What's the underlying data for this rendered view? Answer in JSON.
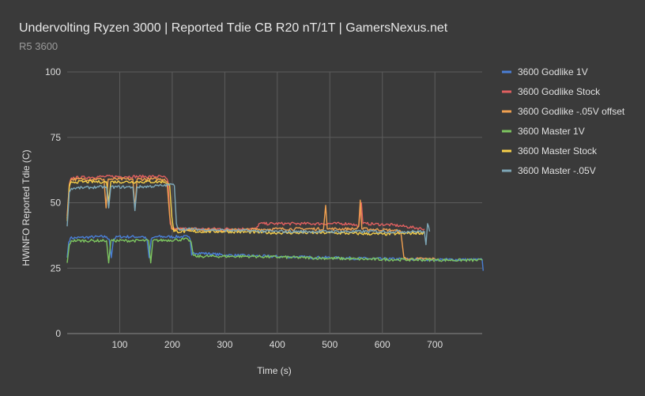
{
  "chart_data": {
    "type": "line",
    "title": "Undervolting Ryzen 3000 | Reported Tdie CB R20 nT/1T | GamersNexus.net",
    "subtitle": "R5 3600",
    "xlabel": "Time (s)",
    "ylabel": "HWiNFO Reported Tdie (C)",
    "xlim": [
      0,
      790
    ],
    "ylim": [
      0,
      100
    ],
    "x_ticks": [
      100,
      200,
      300,
      400,
      500,
      600,
      700
    ],
    "y_ticks": [
      0,
      25,
      50,
      75,
      100
    ],
    "grid": true,
    "legend_position": "right",
    "series": [
      {
        "name": "3600 Godlike 1V",
        "color": "#4a7fd6",
        "points": [
          [
            0,
            29
          ],
          [
            3,
            35
          ],
          [
            6,
            36.5
          ],
          [
            60,
            37
          ],
          [
            75,
            37
          ],
          [
            80,
            36
          ],
          [
            84,
            29
          ],
          [
            88,
            36
          ],
          [
            95,
            37
          ],
          [
            145,
            37
          ],
          [
            152,
            36
          ],
          [
            156,
            29
          ],
          [
            160,
            36
          ],
          [
            168,
            37
          ],
          [
            230,
            37
          ],
          [
            234,
            36
          ],
          [
            237,
            30
          ],
          [
            240,
            31
          ],
          [
            300,
            30
          ],
          [
            380,
            29.5
          ],
          [
            500,
            29
          ],
          [
            600,
            28.5
          ],
          [
            700,
            28.3
          ],
          [
            790,
            28.2
          ],
          [
            792,
            24
          ]
        ]
      },
      {
        "name": "3600 Godlike Stock",
        "color": "#e06060",
        "points": [
          [
            0,
            45
          ],
          [
            4,
            57
          ],
          [
            8,
            59.5
          ],
          [
            70,
            60
          ],
          [
            110,
            60
          ],
          [
            180,
            60
          ],
          [
            188,
            59.5
          ],
          [
            192,
            58
          ],
          [
            196,
            42
          ],
          [
            200,
            40
          ],
          [
            360,
            40
          ],
          [
            365,
            42
          ],
          [
            450,
            42
          ],
          [
            540,
            42
          ],
          [
            555,
            41
          ],
          [
            560,
            50
          ],
          [
            563,
            42
          ],
          [
            570,
            42
          ],
          [
            620,
            41.5
          ],
          [
            680,
            40
          ]
        ]
      },
      {
        "name": "3600 Godlike -.05V offset",
        "color": "#f0a050",
        "points": [
          [
            0,
            44
          ],
          [
            4,
            57
          ],
          [
            8,
            59
          ],
          [
            65,
            59
          ],
          [
            70,
            59
          ],
          [
            74,
            48
          ],
          [
            78,
            59
          ],
          [
            120,
            59
          ],
          [
            125,
            59
          ],
          [
            129,
            48
          ],
          [
            133,
            59
          ],
          [
            185,
            59
          ],
          [
            190,
            58
          ],
          [
            195,
            45
          ],
          [
            199,
            40
          ],
          [
            300,
            39.5
          ],
          [
            400,
            40
          ],
          [
            488,
            40
          ],
          [
            492,
            49
          ],
          [
            495,
            40
          ],
          [
            550,
            40
          ],
          [
            555,
            41
          ],
          [
            558,
            51
          ],
          [
            561,
            40
          ],
          [
            620,
            39.5
          ],
          [
            635,
            39
          ],
          [
            641,
            29
          ],
          [
            645,
            28.5
          ],
          [
            700,
            28.5
          ]
        ]
      },
      {
        "name": "3600 Master 1V",
        "color": "#7dc560",
        "points": [
          [
            0,
            27
          ],
          [
            4,
            34
          ],
          [
            8,
            35.5
          ],
          [
            70,
            35.5
          ],
          [
            75,
            35.5
          ],
          [
            79,
            27
          ],
          [
            83,
            35.5
          ],
          [
            155,
            35.5
          ],
          [
            159,
            27
          ],
          [
            163,
            35.5
          ],
          [
            230,
            36
          ],
          [
            236,
            35
          ],
          [
            240,
            30
          ],
          [
            245,
            29.5
          ],
          [
            350,
            29.5
          ],
          [
            450,
            29
          ],
          [
            550,
            28.5
          ],
          [
            650,
            28.2
          ],
          [
            790,
            28
          ]
        ]
      },
      {
        "name": "3600 Master Stock",
        "color": "#f7d04a",
        "points": [
          [
            0,
            43
          ],
          [
            4,
            56
          ],
          [
            8,
            58
          ],
          [
            70,
            58
          ],
          [
            75,
            58
          ],
          [
            79,
            50
          ],
          [
            83,
            58
          ],
          [
            135,
            58
          ],
          [
            185,
            58
          ],
          [
            195,
            57
          ],
          [
            199,
            45
          ],
          [
            203,
            39
          ],
          [
            300,
            39
          ],
          [
            400,
            38.5
          ],
          [
            500,
            38.5
          ],
          [
            600,
            38
          ],
          [
            680,
            38.5
          ]
        ]
      },
      {
        "name": "3600 Master -.05V",
        "color": "#7ea8b8",
        "points": [
          [
            0,
            41
          ],
          [
            4,
            54
          ],
          [
            8,
            55.5
          ],
          [
            60,
            56
          ],
          [
            75,
            56
          ],
          [
            79,
            48
          ],
          [
            83,
            56
          ],
          [
            125,
            56
          ],
          [
            129,
            47
          ],
          [
            133,
            56
          ],
          [
            180,
            56.5
          ],
          [
            200,
            57
          ],
          [
            204,
            56.5
          ],
          [
            208,
            42
          ],
          [
            212,
            40
          ],
          [
            300,
            39.5
          ],
          [
            400,
            39
          ],
          [
            500,
            39
          ],
          [
            600,
            39
          ],
          [
            680,
            39
          ],
          [
            683,
            34
          ],
          [
            686,
            42
          ],
          [
            690,
            39
          ]
        ]
      }
    ]
  }
}
